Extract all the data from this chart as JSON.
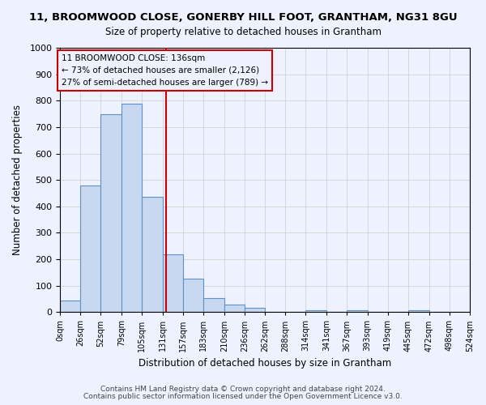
{
  "title": "11, BROOMWOOD CLOSE, GONERBY HILL FOOT, GRANTHAM, NG31 8GU",
  "subtitle": "Size of property relative to detached houses in Grantham",
  "xlabel": "Distribution of detached houses by size in Grantham",
  "ylabel": "Number of detached properties",
  "bin_edges": [
    0,
    26,
    52,
    79,
    105,
    131,
    157,
    183,
    210,
    236,
    262,
    288,
    314,
    341,
    367,
    393,
    419,
    445,
    472,
    498,
    524
  ],
  "bar_heights": [
    45,
    480,
    750,
    790,
    435,
    218,
    125,
    52,
    28,
    15,
    0,
    0,
    8,
    0,
    8,
    0,
    0,
    8,
    0,
    0
  ],
  "bar_color": "#c8d8f0",
  "bar_edgecolor": "#6090c8",
  "vline_x": 136,
  "vline_color": "#cc0000",
  "ylim": [
    0,
    1000
  ],
  "xlim": [
    0,
    524
  ],
  "annotation_box_text": "11 BROOMWOOD CLOSE: 136sqm\n← 73% of detached houses are smaller (2,126)\n27% of semi-detached houses are larger (789) →",
  "box_edgecolor": "#cc0000",
  "footer1": "Contains HM Land Registry data © Crown copyright and database right 2024.",
  "footer2": "Contains public sector information licensed under the Open Government Licence v3.0.",
  "tick_labels": [
    "0sqm",
    "26sqm",
    "52sqm",
    "79sqm",
    "105sqm",
    "131sqm",
    "157sqm",
    "183sqm",
    "210sqm",
    "236sqm",
    "262sqm",
    "288sqm",
    "314sqm",
    "341sqm",
    "367sqm",
    "393sqm",
    "419sqm",
    "445sqm",
    "472sqm",
    "498sqm",
    "524sqm"
  ],
  "ytick_labels": [
    0,
    100,
    200,
    300,
    400,
    500,
    600,
    700,
    800,
    900,
    1000
  ],
  "background_color": "#eef2ff"
}
